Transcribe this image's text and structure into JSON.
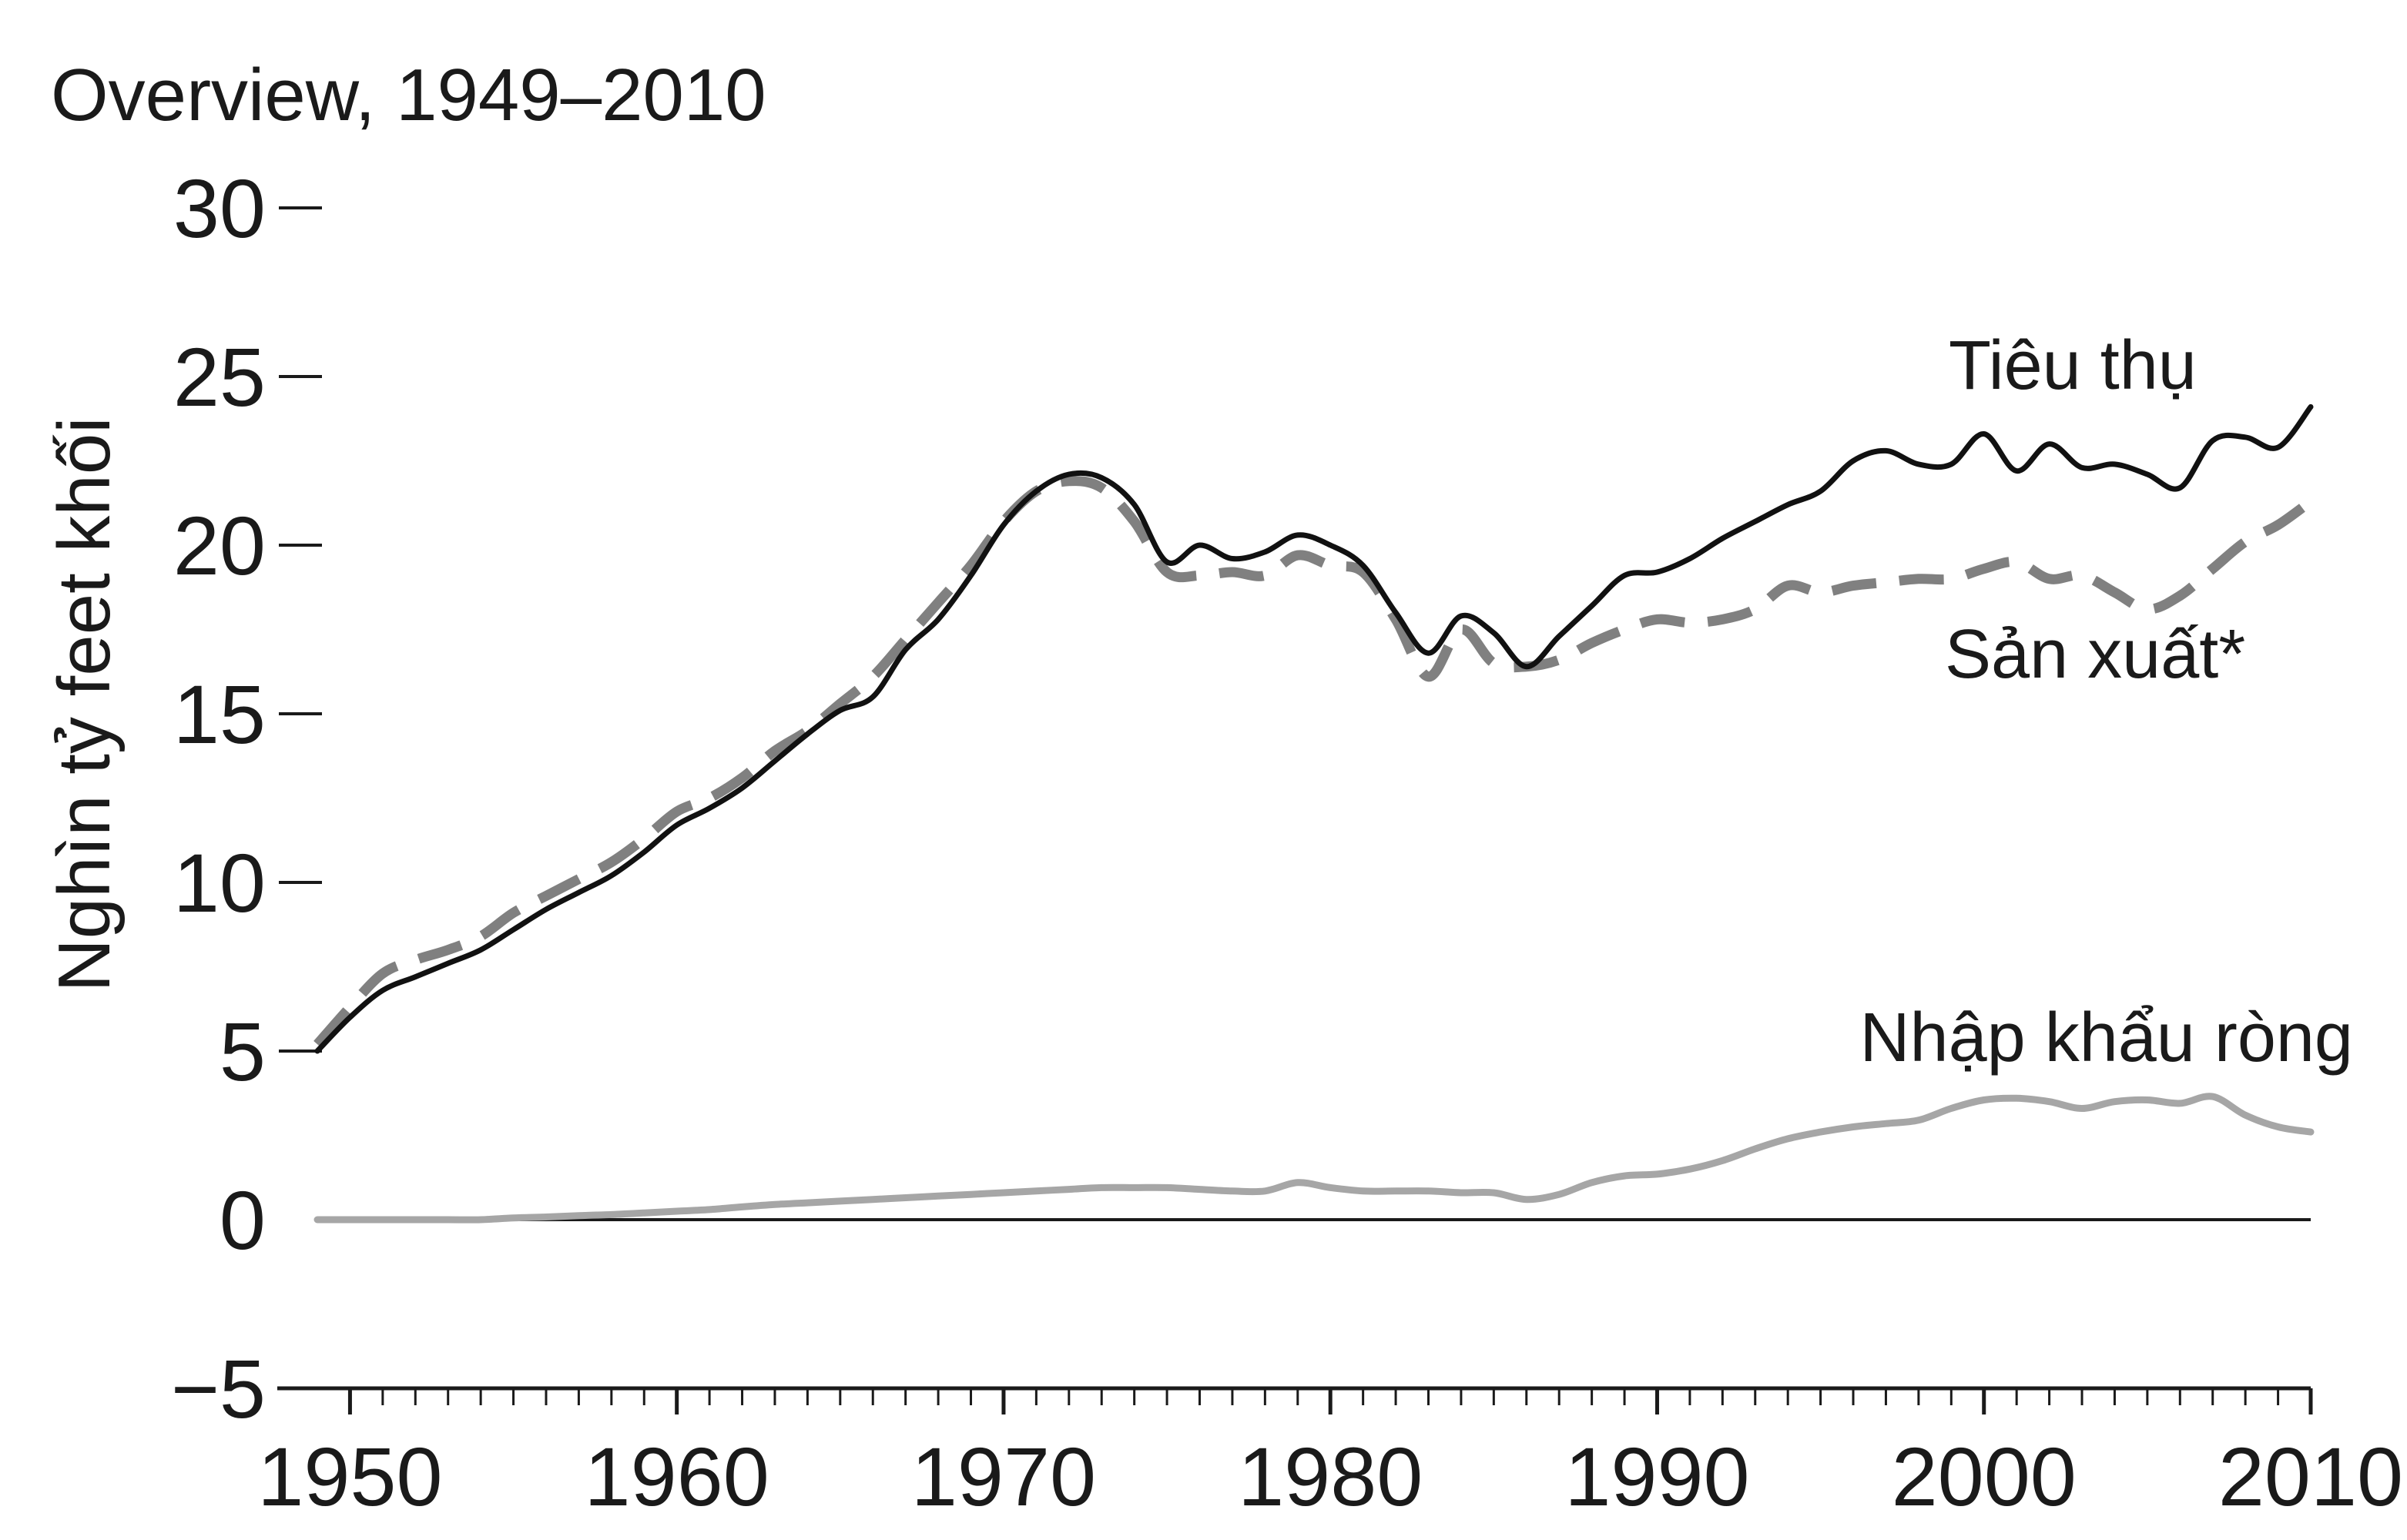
{
  "chart_data": {
    "type": "line",
    "title": "Overview, 1949–2010",
    "xlabel": "",
    "ylabel": "Nghìn tỷ feet khối",
    "xlim": [
      1949,
      2010
    ],
    "ylim": [
      -5,
      30
    ],
    "grid": false,
    "x_ticks": [
      1950,
      1960,
      1970,
      1980,
      1990,
      2000,
      2010
    ],
    "x_tick_labels": [
      "1950",
      "1960",
      "1970",
      "1980",
      "1990",
      "2000",
      "2010"
    ],
    "y_ticks": [
      -5,
      0,
      5,
      10,
      15,
      20,
      25,
      30
    ],
    "y_tick_labels": [
      "−5",
      "0",
      "5",
      "10",
      "15",
      "20",
      "25",
      "30"
    ],
    "x": [
      1949,
      1950,
      1951,
      1952,
      1953,
      1954,
      1955,
      1956,
      1957,
      1958,
      1959,
      1960,
      1961,
      1962,
      1963,
      1964,
      1965,
      1966,
      1967,
      1968,
      1969,
      1970,
      1971,
      1972,
      1973,
      1974,
      1975,
      1976,
      1977,
      1978,
      1979,
      1980,
      1981,
      1982,
      1983,
      1984,
      1985,
      1986,
      1987,
      1988,
      1989,
      1990,
      1991,
      1992,
      1993,
      1994,
      1995,
      1996,
      1997,
      1998,
      1999,
      2000,
      2001,
      2002,
      2003,
      2004,
      2005,
      2006,
      2007,
      2008,
      2009,
      2010
    ],
    "series": [
      {
        "name": "Tiêu thụ",
        "color": "#111111",
        "style": "solid",
        "values": [
          5.0,
          6.0,
          6.8,
          7.2,
          7.6,
          8.0,
          8.6,
          9.2,
          9.7,
          10.2,
          10.9,
          11.7,
          12.2,
          12.8,
          13.6,
          14.4,
          15.1,
          15.5,
          16.9,
          17.8,
          19.1,
          20.6,
          21.6,
          22.1,
          22.0,
          21.2,
          19.5,
          20.0,
          19.6,
          19.8,
          20.3,
          20.0,
          19.4,
          18.0,
          16.8,
          17.9,
          17.4,
          16.4,
          17.3,
          18.2,
          19.1,
          19.2,
          19.6,
          20.2,
          20.7,
          21.2,
          21.6,
          22.5,
          22.8,
          22.4,
          22.4,
          23.3,
          22.2,
          23.0,
          22.3,
          22.4,
          22.1,
          21.7,
          23.1,
          23.2,
          22.9,
          24.1
        ]
      },
      {
        "name": "Sản xuất*",
        "color": "#808080",
        "style": "dashed",
        "values": [
          5.2,
          6.3,
          7.3,
          7.7,
          8.0,
          8.4,
          9.1,
          9.6,
          10.1,
          10.6,
          11.3,
          12.1,
          12.5,
          13.1,
          13.9,
          14.5,
          15.3,
          16.1,
          17.2,
          18.3,
          19.4,
          20.7,
          21.6,
          21.9,
          21.7,
          20.7,
          19.2,
          19.1,
          19.2,
          19.1,
          19.7,
          19.4,
          19.2,
          17.8,
          16.1,
          17.5,
          16.5,
          16.4,
          16.6,
          17.1,
          17.5,
          17.8,
          17.7,
          17.8,
          18.1,
          18.8,
          18.6,
          18.8,
          18.9,
          19.0,
          19.0,
          19.3,
          19.5,
          19.0,
          19.1,
          18.6,
          18.1,
          18.5,
          19.3,
          20.1,
          20.6,
          21.3
        ]
      },
      {
        "name": "Nhập khẩu ròng",
        "color": "#a6a6a6",
        "style": "solid",
        "values": [
          0.0,
          0.0,
          0.0,
          0.0,
          0.0,
          0.0,
          0.05,
          0.08,
          0.12,
          0.15,
          0.2,
          0.25,
          0.3,
          0.38,
          0.45,
          0.5,
          0.55,
          0.6,
          0.65,
          0.7,
          0.75,
          0.8,
          0.85,
          0.9,
          0.95,
          0.95,
          0.95,
          0.9,
          0.85,
          0.85,
          1.1,
          0.95,
          0.85,
          0.85,
          0.85,
          0.8,
          0.8,
          0.6,
          0.75,
          1.1,
          1.3,
          1.35,
          1.5,
          1.75,
          2.1,
          2.4,
          2.6,
          2.75,
          2.85,
          2.95,
          3.3,
          3.55,
          3.6,
          3.5,
          3.3,
          3.5,
          3.55,
          3.45,
          3.65,
          3.1,
          2.75,
          2.6
        ]
      }
    ]
  }
}
